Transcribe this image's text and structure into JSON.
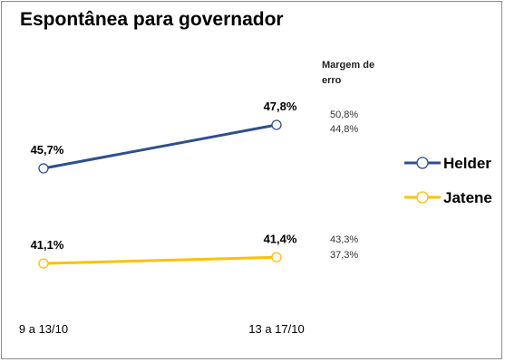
{
  "chart_data": {
    "type": "line",
    "title": "Espontânea para governador",
    "categories": [
      "9 a 13/10",
      "13 a 17/10"
    ],
    "series": [
      {
        "name": "Helder",
        "values": [
          45.7,
          47.8
        ],
        "labels": [
          "45,7%",
          "47,8%"
        ],
        "color": "#2e4f8c"
      },
      {
        "name": "Jatene",
        "values": [
          41.1,
          41.4
        ],
        "labels": [
          "41,1%",
          "41,4%"
        ],
        "color": "#ffc000"
      }
    ],
    "margin_header": "Margem de erro",
    "margins": [
      {
        "series": "Helder",
        "upper": "50,8%",
        "lower": "44,8%"
      },
      {
        "series": "Jatene",
        "upper": "43,3%",
        "lower": "37,3%"
      }
    ],
    "legend_position": "right",
    "grid": false
  }
}
